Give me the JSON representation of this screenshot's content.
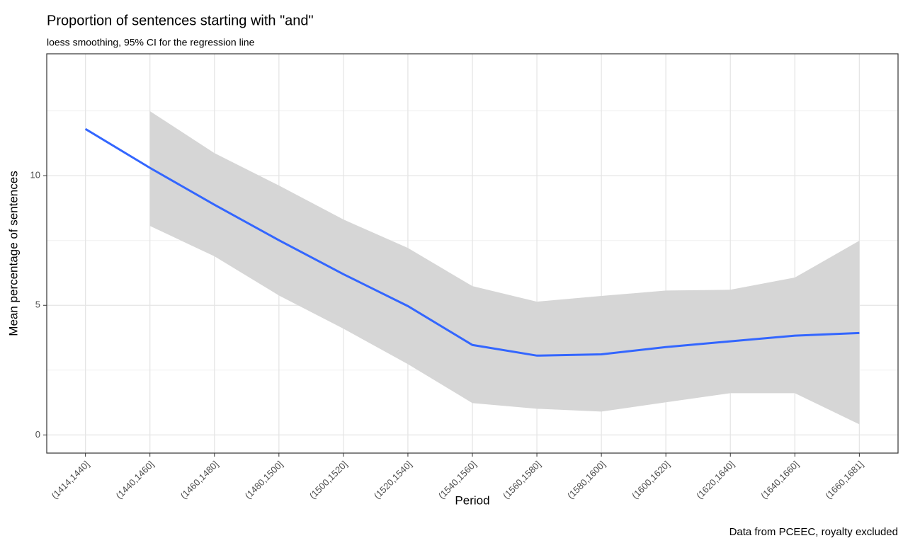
{
  "chart_data": {
    "type": "line",
    "title": "Proportion of sentences starting with \"and\"",
    "subtitle": "loess smoothing, 95% CI for the regression line",
    "x_label": "Period",
    "y_label": "Mean percentage of sentences",
    "caption": "Data from PCEEC, royalty excluded",
    "categories": [
      "(1414,1440]",
      "(1440,1460]",
      "(1460,1480]",
      "(1480,1500]",
      "(1500,1520]",
      "(1520,1540]",
      "(1540,1560]",
      "(1560,1580]",
      "(1580,1600]",
      "(1600,1620]",
      "(1620,1640]",
      "(1640,1660]",
      "(1660,1681]"
    ],
    "series": [
      {
        "color": "#3366ff",
        "values": [
          11.8,
          10.3,
          8.88,
          7.51,
          6.2,
          4.97,
          3.47,
          3.06,
          3.11,
          3.39,
          3.61,
          3.83,
          3.93
        ]
      }
    ],
    "band": {
      "color": "#d6d6d6",
      "lower": [
        null,
        8.06,
        6.89,
        5.38,
        4.1,
        2.73,
        1.23,
        1.01,
        0.9,
        1.26,
        1.61,
        1.61,
        0.41
      ],
      "upper": [
        null,
        12.49,
        10.87,
        9.62,
        8.31,
        7.21,
        5.74,
        5.14,
        5.36,
        5.57,
        5.6,
        6.07,
        7.49
      ]
    },
    "ylim": [
      -0.7,
      14.7
    ],
    "yticks": [
      0,
      5,
      10
    ],
    "minor_yticks": [
      2.5,
      7.5,
      12.5
    ],
    "grid": true
  }
}
